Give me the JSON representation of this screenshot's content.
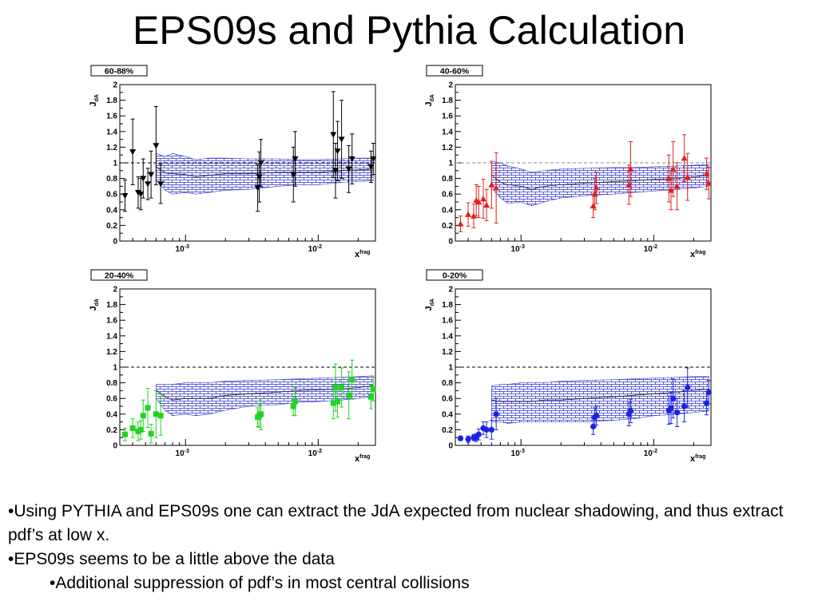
{
  "title": "EPS09s and Pythia Calculation",
  "bullets": [
    "•Using PYTHIA and EPS09s one can extract the JdA expected from nuclear shadowing, and thus extract pdf’s at low x.",
    "•EPS09s seems to be a little above the data",
    "•Additional suppression of pdf’s in most central collisions"
  ],
  "chart_data": [
    {
      "type": "scatter",
      "label": "60-88%",
      "marker": "triangle-down",
      "color": "#000000",
      "ylabel_main": "J",
      "ylabel_sub": "dA",
      "xlabel_main": "x",
      "xlabel_sup": "frag",
      "xscale": "log",
      "xlim": [
        0.00032,
        0.027
      ],
      "ylim": [
        0,
        2
      ],
      "yticks": [
        "0",
        "0.2",
        "0.4",
        "0.6",
        "0.8",
        "1",
        "1.2",
        "1.4",
        "1.6",
        "1.8",
        "2"
      ],
      "xticks": [
        {
          "base": "10",
          "exp": "-3",
          "value": 0.001
        },
        {
          "base": "10",
          "exp": "-2",
          "value": 0.01
        }
      ],
      "reference_line": 1.0,
      "x": [
        0.00035,
        0.0004,
        0.00044,
        0.00046,
        0.00048,
        0.00052,
        0.00055,
        0.0006,
        0.00065,
        0.0035,
        0.0036,
        0.0037,
        0.0065,
        0.0067,
        0.013,
        0.0135,
        0.014,
        0.015,
        0.017,
        0.018,
        0.025,
        0.026
      ],
      "y": [
        0.58,
        1.14,
        0.62,
        0.6,
        0.8,
        0.73,
        0.85,
        1.22,
        0.73,
        0.68,
        0.82,
        1.0,
        0.85,
        1.05,
        1.36,
        0.9,
        1.15,
        1.3,
        0.92,
        1.05,
        0.95,
        1.05
      ],
      "yerr": [
        0.2,
        0.42,
        0.2,
        0.2,
        0.25,
        0.2,
        0.3,
        0.5,
        0.25,
        0.3,
        0.32,
        0.3,
        0.35,
        0.35,
        0.55,
        0.35,
        0.38,
        0.5,
        0.3,
        0.32,
        0.2,
        0.2
      ],
      "band": {
        "label": "EPS09s",
        "x": [
          0.0006,
          0.0007,
          0.0008,
          0.001,
          0.0012,
          0.0015,
          0.002,
          0.003,
          0.005,
          0.007,
          0.01,
          0.015,
          0.02,
          0.026
        ],
        "lower": [
          0.78,
          0.65,
          0.6,
          0.62,
          0.6,
          0.62,
          0.65,
          0.66,
          0.7,
          0.72,
          0.72,
          0.75,
          0.76,
          0.77
        ],
        "upper": [
          1.12,
          1.08,
          1.12,
          1.08,
          1.04,
          1.06,
          1.06,
          1.05,
          1.05,
          1.04,
          1.04,
          1.05,
          1.06,
          1.06
        ],
        "center": [
          0.95,
          0.87,
          0.86,
          0.85,
          0.82,
          0.84,
          0.86,
          0.86,
          0.88,
          0.88,
          0.88,
          0.9,
          0.91,
          0.92
        ]
      }
    },
    {
      "type": "scatter",
      "label": "40-60%",
      "marker": "triangle-up",
      "color": "#e0201c",
      "ylabel_main": "J",
      "ylabel_sub": "dA",
      "xlabel_main": "x",
      "xlabel_sup": "frag",
      "xscale": "log",
      "xlim": [
        0.00032,
        0.027
      ],
      "ylim": [
        0,
        2
      ],
      "yticks": [
        "0",
        "0.2",
        "0.4",
        "0.6",
        "0.8",
        "1",
        "1.2",
        "1.4",
        "1.6",
        "1.8",
        "2"
      ],
      "xticks": [
        {
          "base": "10",
          "exp": "-3",
          "value": 0.001
        },
        {
          "base": "10",
          "exp": "-2",
          "value": 0.01
        }
      ],
      "reference_line": 1.0,
      "x": [
        0.00035,
        0.0004,
        0.00044,
        0.00046,
        0.00048,
        0.00052,
        0.00055,
        0.0006,
        0.00065,
        0.0035,
        0.0036,
        0.0037,
        0.0065,
        0.0067,
        0.013,
        0.0135,
        0.014,
        0.015,
        0.017,
        0.018,
        0.025,
        0.026
      ],
      "y": [
        0.22,
        0.34,
        0.32,
        0.52,
        0.5,
        0.54,
        0.46,
        0.72,
        0.68,
        0.45,
        0.6,
        0.68,
        0.72,
        0.92,
        0.8,
        0.65,
        0.92,
        0.7,
        1.06,
        0.82,
        0.86,
        0.74
      ],
      "yerr": [
        0.1,
        0.15,
        0.15,
        0.2,
        0.2,
        0.25,
        0.2,
        0.3,
        0.45,
        0.15,
        0.2,
        0.2,
        0.25,
        0.35,
        0.3,
        0.25,
        0.35,
        0.3,
        0.3,
        0.3,
        0.2,
        0.2
      ],
      "band": {
        "label": "EPS09s",
        "x": [
          0.0006,
          0.0007,
          0.0008,
          0.001,
          0.0012,
          0.0015,
          0.002,
          0.003,
          0.005,
          0.007,
          0.01,
          0.015,
          0.02,
          0.026
        ],
        "lower": [
          0.68,
          0.55,
          0.48,
          0.5,
          0.45,
          0.5,
          0.55,
          0.58,
          0.6,
          0.62,
          0.64,
          0.66,
          0.68,
          0.7
        ],
        "upper": [
          1.02,
          1.0,
          0.96,
          0.92,
          0.88,
          0.9,
          0.92,
          0.93,
          0.94,
          0.94,
          0.95,
          0.96,
          0.97,
          0.98
        ],
        "center": [
          0.85,
          0.75,
          0.72,
          0.7,
          0.66,
          0.7,
          0.72,
          0.74,
          0.76,
          0.77,
          0.79,
          0.8,
          0.82,
          0.84
        ]
      }
    },
    {
      "type": "scatter",
      "label": "20-40%",
      "marker": "square",
      "color": "#22d322",
      "ylabel_main": "J",
      "ylabel_sub": "dA",
      "xlabel_main": "x",
      "xlabel_sup": "frag",
      "xscale": "log",
      "xlim": [
        0.00032,
        0.027
      ],
      "ylim": [
        0,
        2
      ],
      "yticks": [
        "0",
        "0.2",
        "0.4",
        "0.6",
        "0.8",
        "1",
        "1.2",
        "1.4",
        "1.6",
        "1.8",
        "2"
      ],
      "xticks": [
        {
          "base": "10",
          "exp": "-3",
          "value": 0.001
        },
        {
          "base": "10",
          "exp": "-2",
          "value": 0.01
        }
      ],
      "reference_line": 1.0,
      "x": [
        0.00035,
        0.0004,
        0.00044,
        0.00046,
        0.00048,
        0.00052,
        0.00055,
        0.0006,
        0.00065,
        0.0035,
        0.0036,
        0.0037,
        0.0065,
        0.0067,
        0.013,
        0.0135,
        0.014,
        0.015,
        0.017,
        0.018,
        0.025,
        0.026
      ],
      "y": [
        0.14,
        0.22,
        0.18,
        0.2,
        0.38,
        0.48,
        0.15,
        0.4,
        0.38,
        0.36,
        0.38,
        0.4,
        0.5,
        0.56,
        0.54,
        0.74,
        0.56,
        0.74,
        0.64,
        0.84,
        0.62,
        0.72
      ],
      "yerr": [
        0.08,
        0.12,
        0.12,
        0.12,
        0.2,
        0.25,
        0.12,
        0.3,
        0.25,
        0.12,
        0.15,
        0.2,
        0.12,
        0.18,
        0.2,
        0.3,
        0.2,
        0.25,
        0.3,
        0.25,
        0.15,
        0.15
      ],
      "band": {
        "label": "EPS09s",
        "x": [
          0.0006,
          0.0007,
          0.0008,
          0.001,
          0.0012,
          0.0015,
          0.002,
          0.003,
          0.005,
          0.007,
          0.01,
          0.015,
          0.02,
          0.026
        ],
        "lower": [
          0.6,
          0.45,
          0.38,
          0.4,
          0.38,
          0.4,
          0.45,
          0.5,
          0.52,
          0.55,
          0.56,
          0.58,
          0.6,
          0.62
        ],
        "upper": [
          0.78,
          0.78,
          0.78,
          0.8,
          0.8,
          0.8,
          0.82,
          0.83,
          0.84,
          0.85,
          0.86,
          0.87,
          0.88,
          0.89
        ],
        "center": [
          0.7,
          0.62,
          0.58,
          0.6,
          0.6,
          0.6,
          0.64,
          0.66,
          0.68,
          0.7,
          0.71,
          0.72,
          0.74,
          0.76
        ]
      }
    },
    {
      "type": "scatter",
      "label": "0-20%",
      "marker": "circle",
      "color": "#1a24e0",
      "ylabel_main": "J",
      "ylabel_sub": "dA",
      "xlabel_main": "x",
      "xlabel_sup": "frag",
      "xscale": "log",
      "xlim": [
        0.00032,
        0.027
      ],
      "ylim": [
        0,
        2
      ],
      "yticks": [
        "0",
        "0.2",
        "0.4",
        "0.6",
        "0.8",
        "1",
        "1.2",
        "1.4",
        "1.6",
        "1.8",
        "2"
      ],
      "xticks": [
        {
          "base": "10",
          "exp": "-3",
          "value": 0.001
        },
        {
          "base": "10",
          "exp": "-2",
          "value": 0.01
        }
      ],
      "reference_line": 1.0,
      "x": [
        0.00035,
        0.0004,
        0.00044,
        0.00046,
        0.00048,
        0.00052,
        0.00055,
        0.0006,
        0.00065,
        0.0035,
        0.0036,
        0.0037,
        0.0065,
        0.0067,
        0.013,
        0.0135,
        0.014,
        0.015,
        0.017,
        0.018,
        0.025,
        0.026
      ],
      "y": [
        0.09,
        0.08,
        0.1,
        0.1,
        0.14,
        0.22,
        0.2,
        0.2,
        0.4,
        0.24,
        0.36,
        0.38,
        0.4,
        0.44,
        0.45,
        0.48,
        0.6,
        0.42,
        0.5,
        0.74,
        0.54,
        0.68
      ],
      "yerr": [
        0.03,
        0.04,
        0.04,
        0.05,
        0.07,
        0.08,
        0.1,
        0.12,
        0.2,
        0.1,
        0.12,
        0.12,
        0.15,
        0.15,
        0.18,
        0.2,
        0.25,
        0.18,
        0.2,
        0.25,
        0.15,
        0.15
      ],
      "band": {
        "label": "EPS09s",
        "x": [
          0.0006,
          0.0007,
          0.0008,
          0.001,
          0.0012,
          0.0015,
          0.002,
          0.003,
          0.005,
          0.007,
          0.01,
          0.015,
          0.02,
          0.026
        ],
        "lower": [
          0.3,
          0.3,
          0.28,
          0.3,
          0.3,
          0.3,
          0.3,
          0.3,
          0.32,
          0.34,
          0.38,
          0.4,
          0.42,
          0.44
        ],
        "upper": [
          0.76,
          0.78,
          0.78,
          0.8,
          0.8,
          0.8,
          0.82,
          0.83,
          0.84,
          0.85,
          0.86,
          0.87,
          0.88,
          0.88
        ],
        "center": [
          0.58,
          0.56,
          0.56,
          0.56,
          0.56,
          0.58,
          0.58,
          0.6,
          0.62,
          0.64,
          0.66,
          0.68,
          0.7,
          0.72
        ]
      }
    }
  ]
}
